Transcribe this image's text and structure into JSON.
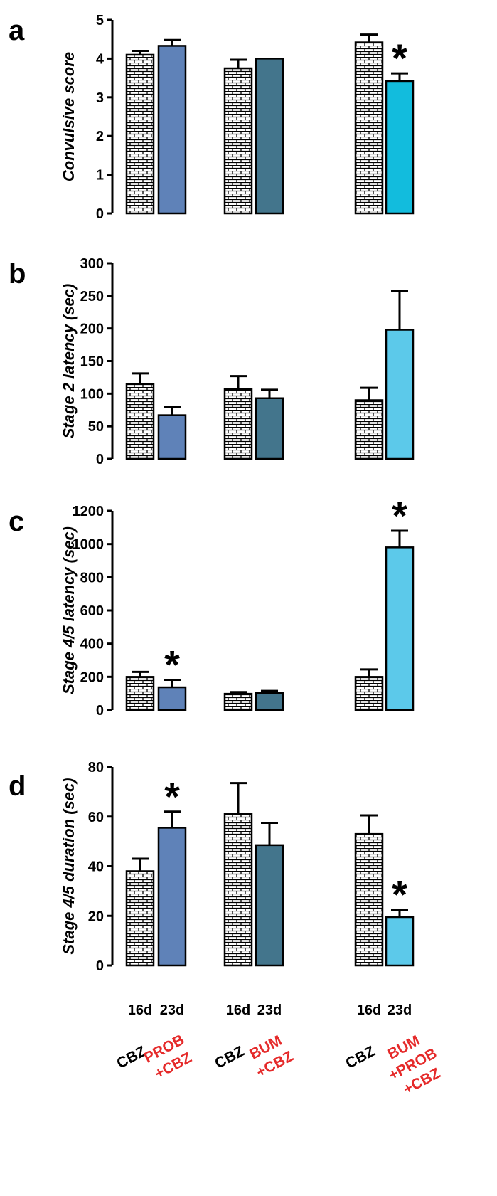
{
  "chart_data": [
    {
      "type": "bar",
      "panel": "a",
      "ylabel": "Convulsive score",
      "ylim": [
        0,
        5
      ],
      "yticks": [
        0,
        1,
        2,
        3,
        4,
        5
      ],
      "bars": [
        {
          "group": "CBZ / PROB+CBZ",
          "day": "16d",
          "value": 4.1,
          "err": 0.1,
          "style": "brick",
          "star": false
        },
        {
          "group": "CBZ / PROB+CBZ",
          "day": "23d",
          "value": 4.33,
          "err": 0.15,
          "style": "#5f82b8",
          "star": false
        },
        {
          "group": "CBZ / BUM+CBZ",
          "day": "16d",
          "value": 3.75,
          "err": 0.22,
          "style": "brick",
          "star": false
        },
        {
          "group": "CBZ / BUM+CBZ",
          "day": "23d",
          "value": 4.0,
          "err": 0,
          "style": "#43758c",
          "star": false
        },
        {
          "group": "CBZ / BUM+PROB+CBZ",
          "day": "16d",
          "value": 4.42,
          "err": 0.2,
          "style": "brick",
          "star": false
        },
        {
          "group": "CBZ / BUM+PROB+CBZ",
          "day": "23d",
          "value": 3.42,
          "err": 0.2,
          "style": "#12bcdd",
          "star": true
        }
      ]
    },
    {
      "type": "bar",
      "panel": "b",
      "ylabel": "Stage 2 latency (sec)",
      "ylim": [
        0,
        300
      ],
      "yticks": [
        0,
        50,
        100,
        150,
        200,
        250,
        300
      ],
      "bars": [
        {
          "group": "CBZ / PROB+CBZ",
          "day": "16d",
          "value": 115,
          "err": 16,
          "style": "brick",
          "star": false
        },
        {
          "group": "CBZ / PROB+CBZ",
          "day": "23d",
          "value": 67,
          "err": 13,
          "style": "#5f82b8",
          "star": false
        },
        {
          "group": "CBZ / BUM+CBZ",
          "day": "16d",
          "value": 107,
          "err": 20,
          "style": "brick",
          "star": false
        },
        {
          "group": "CBZ / BUM+CBZ",
          "day": "23d",
          "value": 93,
          "err": 13,
          "style": "#43758c",
          "star": false
        },
        {
          "group": "CBZ / BUM+PROB+CBZ",
          "day": "16d",
          "value": 90,
          "err": 19,
          "style": "brick",
          "star": false
        },
        {
          "group": "CBZ / BUM+PROB+CBZ",
          "day": "23d",
          "value": 198,
          "err": 59,
          "style": "#5cc9ea",
          "star": false
        }
      ]
    },
    {
      "type": "bar",
      "panel": "c",
      "ylabel": "Stage 4/5 latency (sec)",
      "ylim": [
        0,
        1200
      ],
      "yticks": [
        0,
        200,
        400,
        600,
        800,
        1000,
        1200
      ],
      "bars": [
        {
          "group": "CBZ / PROB+CBZ",
          "day": "16d",
          "value": 200,
          "err": 30,
          "style": "brick",
          "star": false
        },
        {
          "group": "CBZ / PROB+CBZ",
          "day": "23d",
          "value": 137,
          "err": 45,
          "style": "#5f82b8",
          "star": true
        },
        {
          "group": "CBZ / BUM+CBZ",
          "day": "16d",
          "value": 98,
          "err": 10,
          "style": "brick",
          "star": false
        },
        {
          "group": "CBZ / BUM+CBZ",
          "day": "23d",
          "value": 103,
          "err": 12,
          "style": "#43758c",
          "star": false
        },
        {
          "group": "CBZ / BUM+PROB+CBZ",
          "day": "16d",
          "value": 200,
          "err": 45,
          "style": "brick",
          "star": false
        },
        {
          "group": "CBZ / BUM+PROB+CBZ",
          "day": "23d",
          "value": 980,
          "err": 100,
          "style": "#5cc9ea",
          "star": true
        }
      ]
    },
    {
      "type": "bar",
      "panel": "d",
      "ylabel": "Stage 4/5 duration (sec)",
      "ylim": [
        0,
        80
      ],
      "yticks": [
        0,
        20,
        40,
        60,
        80
      ],
      "bars": [
        {
          "group": "CBZ / PROB+CBZ",
          "day": "16d",
          "value": 38,
          "err": 5,
          "style": "brick",
          "star": false
        },
        {
          "group": "CBZ / PROB+CBZ",
          "day": "23d",
          "value": 55.5,
          "err": 6.5,
          "style": "#5f82b8",
          "star": true
        },
        {
          "group": "CBZ / BUM+CBZ",
          "day": "16d",
          "value": 61,
          "err": 12.5,
          "style": "brick",
          "star": false
        },
        {
          "group": "CBZ / BUM+CBZ",
          "day": "23d",
          "value": 48.5,
          "err": 9,
          "style": "#43758c",
          "star": false
        },
        {
          "group": "CBZ / BUM+PROB+CBZ",
          "day": "16d",
          "value": 53,
          "err": 7.5,
          "style": "brick",
          "star": false
        },
        {
          "group": "CBZ / BUM+PROB+CBZ",
          "day": "23d",
          "value": 19.5,
          "err": 3,
          "style": "#5cc9ea",
          "star": true
        }
      ]
    }
  ],
  "x_labels": {
    "days": [
      "16d",
      "23d",
      "16d",
      "23d",
      "16d",
      "23d"
    ],
    "groups": [
      {
        "control": "CBZ",
        "treatment": [
          "PROB",
          "+CBZ"
        ]
      },
      {
        "control": "CBZ",
        "treatment": [
          "BUM",
          "+CBZ"
        ]
      },
      {
        "control": "CBZ",
        "treatment": [
          "BUM",
          "+PROB",
          "+CBZ"
        ]
      }
    ],
    "control_color": "#000000",
    "treatment_color": "#e52a2a"
  },
  "star_symbol": "*"
}
